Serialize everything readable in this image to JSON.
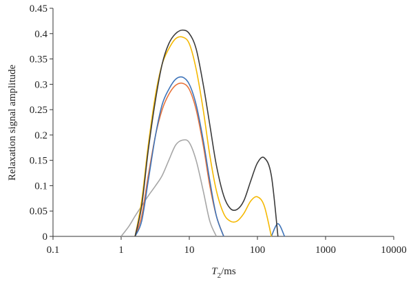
{
  "chart_data": {
    "type": "line",
    "log_x": true,
    "grid": false,
    "y_label": "Relaxation signal amplitude",
    "x_label": {
      "symbol": "T",
      "subscript": "2",
      "unit": "/ms"
    },
    "xlim": [
      0.1,
      10000
    ],
    "xticks": [
      0.1,
      1,
      10,
      100,
      1000,
      10000
    ],
    "ylim": [
      0,
      0.45
    ],
    "yticks": [
      0,
      0.05,
      0.1,
      0.15,
      0.2,
      0.25,
      0.3,
      0.35,
      0.4,
      0.45
    ],
    "x": [
      1,
      1.3,
      1.6,
      2,
      2.5,
      3.2,
      4,
      5,
      6.3,
      8,
      10,
      12.6,
      16,
      20,
      25,
      32,
      40,
      50,
      63,
      80,
      100,
      126,
      160,
      200,
      250
    ],
    "series": [
      {
        "color": "#a6a6a6",
        "values": [
          0,
          0.02,
          0.04,
          0.06,
          0.08,
          0.1,
          0.12,
          0.15,
          0.18,
          0.19,
          0.185,
          0.15,
          0.09,
          0.03,
          0,
          null,
          null,
          null,
          null,
          null,
          null,
          null,
          null,
          null,
          null
        ]
      },
      {
        "color": "#e8733a",
        "values": [
          null,
          null,
          0,
          0.04,
          0.12,
          0.2,
          0.25,
          0.28,
          0.298,
          0.302,
          0.29,
          0.25,
          0.18,
          0.1,
          0.04,
          0,
          null,
          null,
          null,
          null,
          null,
          null,
          null,
          null,
          null
        ]
      },
      {
        "color": "#3d73b9",
        "values": [
          null,
          null,
          0,
          0.03,
          0.11,
          0.2,
          0.26,
          0.29,
          0.31,
          0.314,
          0.3,
          0.26,
          0.19,
          0.11,
          0.04,
          0,
          null,
          null,
          null,
          null,
          null,
          null,
          0,
          0.025,
          0
        ]
      },
      {
        "color": "#f5b800",
        "values": [
          null,
          null,
          0,
          0.07,
          0.18,
          0.28,
          0.34,
          0.37,
          0.39,
          0.393,
          0.38,
          0.33,
          0.25,
          0.16,
          0.09,
          0.045,
          0.03,
          0.03,
          0.045,
          0.07,
          0.078,
          0.06,
          0,
          null,
          null
        ]
      },
      {
        "color": "#3a3a3a",
        "values": [
          null,
          null,
          0,
          0.06,
          0.17,
          0.27,
          0.34,
          0.38,
          0.4,
          0.407,
          0.4,
          0.37,
          0.3,
          0.22,
          0.14,
          0.08,
          0.055,
          0.053,
          0.07,
          0.11,
          0.145,
          0.155,
          0.12,
          0,
          null
        ]
      }
    ]
  }
}
